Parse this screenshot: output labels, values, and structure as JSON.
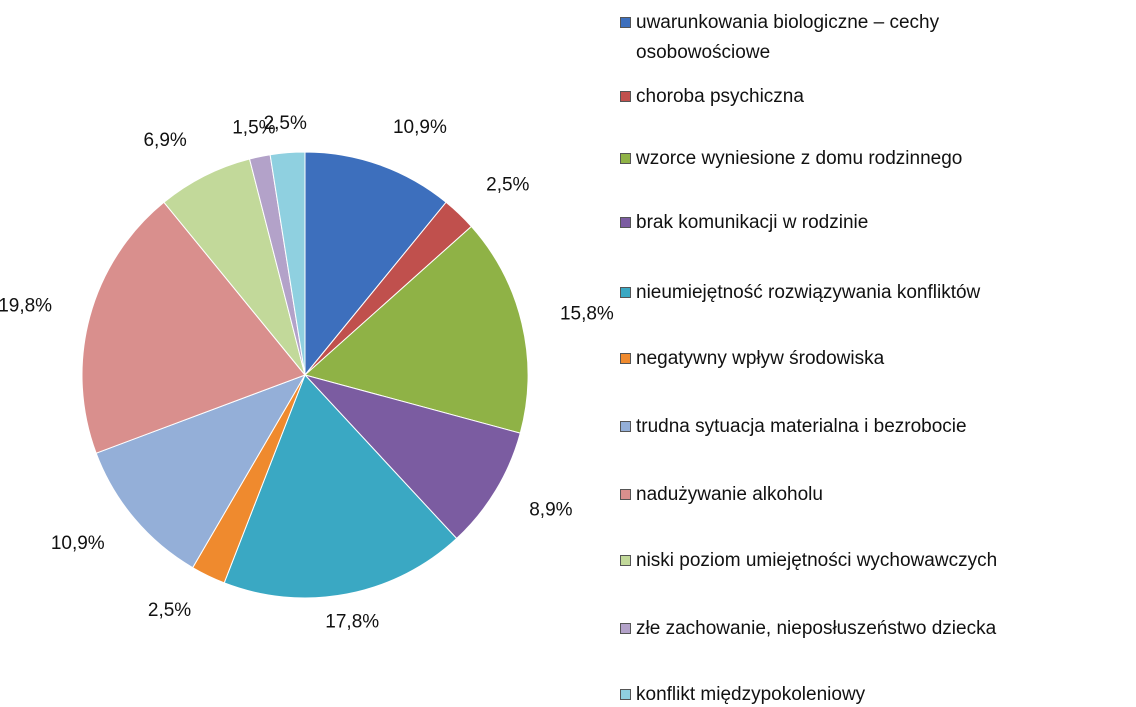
{
  "chart_data": {
    "type": "pie",
    "categories": [
      "uwarunkowania biologiczne – cechy osobowościowe",
      "choroba psychiczna",
      "wzorce wyniesione z domu rodzinnego",
      "brak komunikacji w rodzinie",
      "nieumiejętność rozwiązywania konfliktów",
      "negatywny wpływ środowiska",
      "trudna sytuacja materialna i bezrobocie",
      "nadużywanie alkoholu",
      "niski poziom umiejętności wychowawczych",
      "złe zachowanie, nieposłuszeństwo dziecka",
      "konflikt międzypokoleniowy"
    ],
    "values": [
      10.9,
      2.5,
      15.8,
      8.9,
      17.8,
      2.5,
      10.9,
      19.8,
      6.9,
      1.5,
      2.5
    ],
    "value_labels": [
      "10,9%",
      "2,5%",
      "15,8%",
      "8,9%",
      "17,8%",
      "2,5%",
      "10,9%",
      "19,8%",
      "6,9%",
      "1,5%",
      "2,5%"
    ],
    "colors": [
      "#3d6fbd",
      "#c0504d",
      "#8fb246",
      "#7b5ca1",
      "#3aa8c3",
      "#ef8a2e",
      "#94afd8",
      "#d98f8d",
      "#c2d99a",
      "#b3a2c9",
      "#8fd0e0"
    ],
    "legend": "right"
  }
}
